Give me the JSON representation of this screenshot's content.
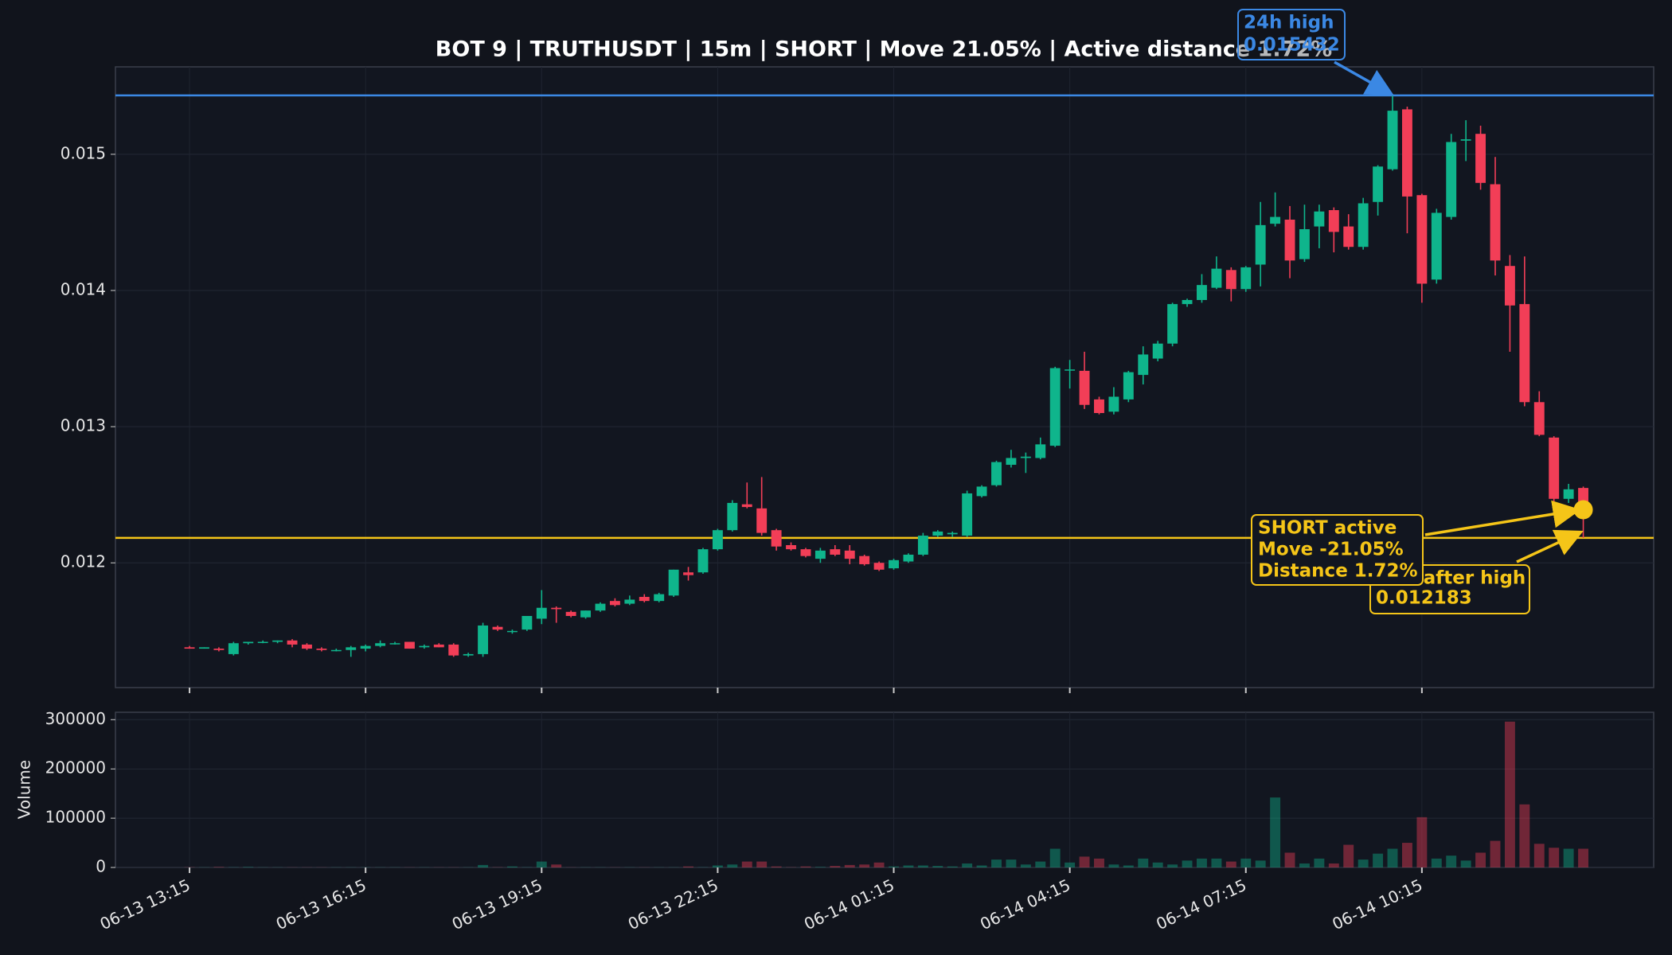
{
  "chart_data": {
    "type": "candlestick",
    "title": "BOT 9 | TRUTHUSDT | 15m | SHORT | Move 21.05% | Active distance 1.72%",
    "x": [
      "06-13 13:15",
      "06-13 13:30",
      "06-13 13:45",
      "06-13 14:00",
      "06-13 14:15",
      "06-13 14:30",
      "06-13 14:45",
      "06-13 15:00",
      "06-13 15:15",
      "06-13 15:30",
      "06-13 15:45",
      "06-13 16:00",
      "06-13 16:15",
      "06-13 16:30",
      "06-13 16:45",
      "06-13 17:00",
      "06-13 17:15",
      "06-13 17:30",
      "06-13 17:45",
      "06-13 18:00",
      "06-13 18:15",
      "06-13 18:30",
      "06-13 18:45",
      "06-13 19:00",
      "06-13 19:15",
      "06-13 19:30",
      "06-13 19:45",
      "06-13 20:00",
      "06-13 20:15",
      "06-13 20:30",
      "06-13 20:45",
      "06-13 21:00",
      "06-13 21:15",
      "06-13 21:30",
      "06-13 21:45",
      "06-13 22:00",
      "06-13 22:15",
      "06-13 22:30",
      "06-13 22:45",
      "06-13 23:00",
      "06-13 23:15",
      "06-13 23:30",
      "06-13 23:45",
      "06-14 00:00",
      "06-14 00:15",
      "06-14 00:30",
      "06-14 00:45",
      "06-14 01:00",
      "06-14 01:15",
      "06-14 01:30",
      "06-14 01:45",
      "06-14 02:00",
      "06-14 02:15",
      "06-14 02:30",
      "06-14 02:45",
      "06-14 03:00",
      "06-14 03:15",
      "06-14 03:30",
      "06-14 03:45",
      "06-14 04:00",
      "06-14 04:15",
      "06-14 04:30",
      "06-14 04:45",
      "06-14 05:00",
      "06-14 05:15",
      "06-14 05:30",
      "06-14 05:45",
      "06-14 06:00",
      "06-14 06:15",
      "06-14 06:30",
      "06-14 06:45",
      "06-14 07:00",
      "06-14 07:15",
      "06-14 07:30",
      "06-14 07:45",
      "06-14 08:00",
      "06-14 08:15",
      "06-14 08:30",
      "06-14 08:45",
      "06-14 09:00",
      "06-14 09:15",
      "06-14 09:30",
      "06-14 09:45",
      "06-14 10:00",
      "06-14 10:15",
      "06-14 10:30",
      "06-14 10:45",
      "06-14 11:00",
      "06-14 11:15",
      "06-14 11:30",
      "06-14 11:45",
      "06-14 12:00",
      "06-14 12:15",
      "06-14 12:30",
      "06-14 12:45",
      "06-14 13:00"
    ],
    "xticks": [
      "06-13 13:15",
      "06-13 16:15",
      "06-13 19:15",
      "06-13 22:15",
      "06-14 01:15",
      "06-14 04:15",
      "06-14 07:15",
      "06-14 10:15"
    ],
    "open": [
      0.01138,
      0.01137,
      0.01137,
      0.01133,
      0.01141,
      0.01142,
      0.01142,
      0.01143,
      0.0114,
      0.01137,
      0.01136,
      0.01136,
      0.01137,
      0.01139,
      0.01141,
      0.01142,
      0.01138,
      0.0114,
      0.0114,
      0.01132,
      0.01133,
      0.01153,
      0.0115,
      0.01151,
      0.01159,
      0.01167,
      0.01164,
      0.0116,
      0.01165,
      0.01172,
      0.0117,
      0.01175,
      0.01172,
      0.01176,
      0.01193,
      0.01193,
      0.0121,
      0.01224,
      0.01243,
      0.0124,
      0.01224,
      0.01213,
      0.0121,
      0.01203,
      0.0121,
      0.01209,
      0.01205,
      0.012,
      0.01196,
      0.01201,
      0.01206,
      0.0122,
      0.01221,
      0.0122,
      0.01249,
      0.01257,
      0.01272,
      0.01277,
      0.01277,
      0.01286,
      0.01342,
      0.01341,
      0.0132,
      0.01311,
      0.0132,
      0.01338,
      0.0135,
      0.01361,
      0.0139,
      0.01393,
      0.01402,
      0.01415,
      0.01401,
      0.01419,
      0.01449,
      0.01452,
      0.01423,
      0.01447,
      0.01459,
      0.01447,
      0.01432,
      0.01465,
      0.01489,
      0.01533,
      0.0147,
      0.01408,
      0.01454,
      0.0151,
      0.01515,
      0.01478,
      0.01418,
      0.0139,
      0.01318,
      0.01292,
      0.01247,
      0.01255
    ],
    "high": [
      0.01139,
      0.01138,
      0.01138,
      0.01142,
      0.01142,
      0.01143,
      0.01143,
      0.01144,
      0.01141,
      0.01138,
      0.01137,
      0.01139,
      0.0114,
      0.01143,
      0.01142,
      0.01142,
      0.0114,
      0.01141,
      0.01141,
      0.01134,
      0.01156,
      0.01154,
      0.01151,
      0.01161,
      0.0118,
      0.01168,
      0.01165,
      0.01165,
      0.01171,
      0.01174,
      0.01176,
      0.01177,
      0.01178,
      0.01195,
      0.01197,
      0.01211,
      0.01225,
      0.01246,
      0.01259,
      0.01263,
      0.01225,
      0.01215,
      0.01211,
      0.01211,
      0.01213,
      0.01213,
      0.01206,
      0.01201,
      0.01203,
      0.01207,
      0.01222,
      0.01224,
      0.01223,
      0.01253,
      0.01257,
      0.01275,
      0.01283,
      0.01281,
      0.01292,
      0.01344,
      0.01349,
      0.01355,
      0.01322,
      0.01329,
      0.01341,
      0.01359,
      0.01363,
      0.01391,
      0.01394,
      0.01412,
      0.01425,
      0.01417,
      0.01418,
      0.01465,
      0.01472,
      0.01462,
      0.01463,
      0.01463,
      0.01461,
      0.01456,
      0.01468,
      0.01492,
      0.015432,
      0.01535,
      0.01471,
      0.0146,
      0.01515,
      0.01525,
      0.01521,
      0.01498,
      0.01426,
      0.01425,
      0.01326,
      0.01293,
      0.01258,
      0.01256
    ],
    "low": [
      0.01137,
      0.01137,
      0.01135,
      0.01132,
      0.0114,
      0.01141,
      0.01141,
      0.01138,
      0.01136,
      0.01135,
      0.01135,
      0.01131,
      0.01135,
      0.01138,
      0.0114,
      0.01137,
      0.01137,
      0.01138,
      0.01131,
      0.01131,
      0.01131,
      0.0115,
      0.01148,
      0.0115,
      0.01155,
      0.01156,
      0.0116,
      0.01159,
      0.01164,
      0.01168,
      0.01169,
      0.01171,
      0.01171,
      0.01175,
      0.01187,
      0.01192,
      0.01209,
      0.01223,
      0.0124,
      0.0122,
      0.01209,
      0.01209,
      0.01204,
      0.012,
      0.01205,
      0.01199,
      0.01198,
      0.01194,
      0.01195,
      0.012,
      0.01205,
      0.01219,
      0.01219,
      0.01219,
      0.01248,
      0.01256,
      0.0127,
      0.01266,
      0.01276,
      0.01285,
      0.01328,
      0.01313,
      0.01309,
      0.01309,
      0.01318,
      0.01331,
      0.01348,
      0.01359,
      0.01388,
      0.01391,
      0.01401,
      0.01392,
      0.01399,
      0.01403,
      0.01447,
      0.01409,
      0.01421,
      0.01431,
      0.01428,
      0.0143,
      0.0143,
      0.01455,
      0.01488,
      0.01442,
      0.01391,
      0.01405,
      0.01452,
      0.01495,
      0.01474,
      0.01411,
      0.01355,
      0.01315,
      0.01293,
      0.01245,
      0.01244,
      0.012183
    ],
    "close": [
      0.01137,
      0.01138,
      0.01136,
      0.01141,
      0.01142,
      0.01142,
      0.01143,
      0.0114,
      0.01137,
      0.01136,
      0.01136,
      0.01138,
      0.01139,
      0.01141,
      0.01141,
      0.01137,
      0.01139,
      0.01138,
      0.01132,
      0.01133,
      0.01154,
      0.01151,
      0.0115,
      0.01161,
      0.01167,
      0.01166,
      0.01161,
      0.01165,
      0.0117,
      0.01169,
      0.01173,
      0.01172,
      0.01177,
      0.01195,
      0.01191,
      0.0121,
      0.01224,
      0.01244,
      0.01241,
      0.01222,
      0.01212,
      0.0121,
      0.01205,
      0.01209,
      0.01206,
      0.01203,
      0.01199,
      0.01195,
      0.01202,
      0.01206,
      0.0122,
      0.01223,
      0.01222,
      0.01251,
      0.01256,
      0.01274,
      0.01277,
      0.01278,
      0.01287,
      0.01343,
      0.01342,
      0.01316,
      0.0131,
      0.01322,
      0.0134,
      0.01353,
      0.01361,
      0.0139,
      0.01393,
      0.01404,
      0.01416,
      0.01401,
      0.01417,
      0.01448,
      0.01454,
      0.01422,
      0.01445,
      0.01458,
      0.01443,
      0.01432,
      0.01464,
      0.01491,
      0.01532,
      0.01469,
      0.01405,
      0.01457,
      0.01509,
      0.01511,
      0.01479,
      0.01422,
      0.01389,
      0.01318,
      0.01294,
      0.01247,
      0.01254,
      0.01239
    ],
    "volume": [
      500,
      300,
      1000,
      500,
      1000,
      300,
      300,
      300,
      300,
      300,
      300,
      300,
      300,
      300,
      300,
      300,
      300,
      300,
      300,
      300,
      5000,
      500,
      2000,
      500,
      12000,
      6000,
      300,
      300,
      300,
      300,
      300,
      300,
      300,
      300,
      2000,
      500,
      4000,
      6000,
      12000,
      12000,
      2000,
      500,
      2000,
      1000,
      3000,
      5000,
      6000,
      10000,
      2000,
      4000,
      4000,
      3000,
      2000,
      8000,
      4000,
      16000,
      16000,
      6000,
      12000,
      38000,
      10000,
      22000,
      18000,
      6000,
      4000,
      18000,
      10000,
      6000,
      14000,
      18000,
      18000,
      12000,
      18000,
      14000,
      142000,
      30000,
      8000,
      18000,
      8000,
      46000,
      16000,
      28000,
      38000,
      50000,
      102000,
      18000,
      24000,
      14000,
      30000,
      54000,
      296000,
      128000,
      48000,
      40000,
      38000,
      38000
    ],
    "ylim": [
      0.011084,
      0.015642
    ],
    "yticks": [
      0.012,
      0.013,
      0.014,
      0.015
    ],
    "volume_label": "Volume",
    "volume_ylim": [
      0,
      315000
    ],
    "volume_yticks": [
      0,
      100000,
      200000,
      300000
    ],
    "up_color": "#0fb58c",
    "down_color": "#f23e57",
    "grid": true,
    "annotations": {
      "high": {
        "label": "24h high",
        "value": 0.015432,
        "color": "#3b88e4"
      },
      "low": {
        "label": "Low after high",
        "value": 0.012183,
        "color": "#f5c518"
      },
      "status": {
        "lines": [
          "SHORT active",
          "Move -21.05%",
          "Distance 1.72%"
        ],
        "color": "#f5c518"
      }
    }
  }
}
